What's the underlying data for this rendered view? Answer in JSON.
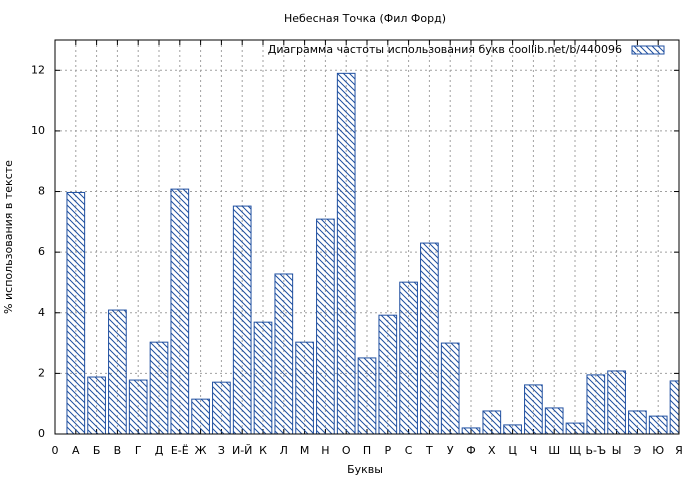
{
  "chart_data": {
    "type": "bar",
    "title": "Небесная Точка (Фил Форд)",
    "xlabel": "Буквы",
    "ylabel": "% использования в тексте",
    "categories": [
      "0",
      "А",
      "Б",
      "В",
      "Г",
      "Д",
      "Е-Ё",
      "Ж",
      "З",
      "И-Й",
      "К",
      "Л",
      "М",
      "Н",
      "О",
      "П",
      "Р",
      "С",
      "Т",
      "У",
      "Ф",
      "Х",
      "Ц",
      "Ч",
      "Ш",
      "Щ",
      "Ь-Ъ",
      "Ы",
      "Э",
      "Ю",
      "Я"
    ],
    "series": [
      {
        "name": "Диаграмма частоты использования букв  coollib.net/b/440096",
        "color": "#1f4fa0",
        "values": [
          null,
          7.97,
          1.88,
          4.09,
          1.78,
          3.03,
          8.08,
          1.15,
          1.71,
          7.52,
          3.69,
          5.28,
          3.03,
          7.09,
          11.9,
          2.51,
          3.92,
          5.01,
          6.3,
          3.0,
          0.2,
          0.76,
          0.3,
          1.62,
          0.86,
          0.36,
          1.95,
          2.08,
          0.76,
          0.59,
          1.75
        ]
      }
    ],
    "ylim": [
      0,
      13
    ],
    "yticks": [
      0,
      2,
      4,
      6,
      8,
      10,
      12
    ],
    "grid": true,
    "hatch": true,
    "legend": "upper right"
  }
}
